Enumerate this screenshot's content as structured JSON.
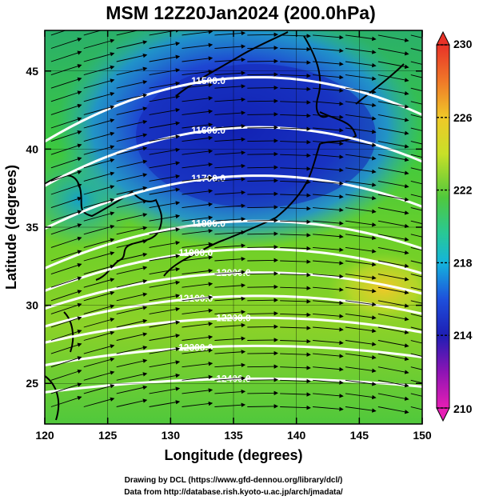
{
  "title": "MSM 12Z20Jan2024 (200.0hPa)",
  "chart_data": {
    "type": "map",
    "title": "MSM 12Z20Jan2024 (200.0hPa)",
    "xlabel": "Longitude (degrees)",
    "ylabel": "Latitude  (degrees)",
    "xlim": [
      120,
      150
    ],
    "ylim": [
      22.4,
      47.6
    ],
    "x_ticks": [
      "120",
      "125",
      "130",
      "135",
      "140",
      "145",
      "150"
    ],
    "y_ticks": [
      "25",
      "30",
      "35",
      "40",
      "45"
    ],
    "fill_field": "temperature (K)",
    "colorbar": {
      "min": 210,
      "max": 230,
      "labels": [
        "230",
        "226",
        "222",
        "218",
        "214",
        "210"
      ]
    },
    "contours": [
      {
        "label": "11500.0",
        "lat": 44.6
      },
      {
        "label": "11600.0",
        "lat": 41.4
      },
      {
        "label": "11700.0",
        "lat": 38.3
      },
      {
        "label": "11800.0",
        "lat": 35.4
      },
      {
        "label": "11900.0",
        "lat": 33.6
      },
      {
        "label": "12000.0",
        "lat": 32.1
      },
      {
        "label": "12100.0",
        "lat": 30.6
      },
      {
        "label": "12200.0",
        "lat": 29.2
      },
      {
        "label": "12300.0",
        "lat": 27.4
      },
      {
        "label": "12400.0",
        "lat": 25.3
      }
    ],
    "wind": "streamline arrows, westerly flow"
  },
  "credits": {
    "line1": "Drawing by DCL (https://www.gfd-dennou.org/library/dcl/)",
    "line2": "Data from http://database.rish.kyoto-u.ac.jp/arch/jmadata/"
  },
  "colors": {
    "cold_core": "#1428c8",
    "mid": "#3cc83c",
    "warm": "#f0c828"
  }
}
